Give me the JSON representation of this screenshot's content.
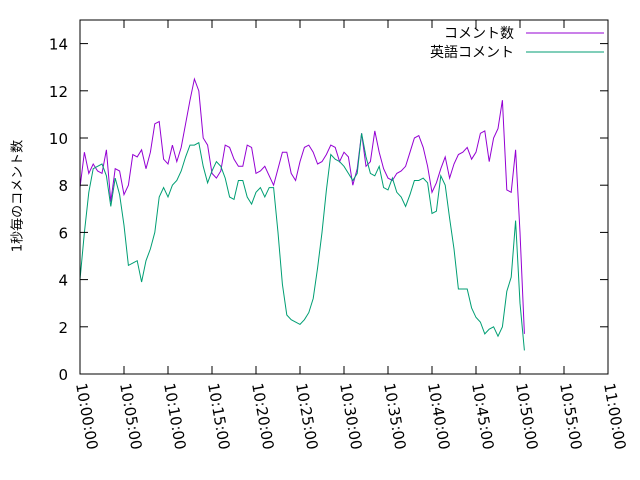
{
  "chart_data": {
    "type": "line",
    "title": "",
    "xlabel": "",
    "ylabel": "1秒毎のコメント数",
    "ylim": [
      0,
      15
    ],
    "yticks": [
      0,
      2,
      4,
      6,
      8,
      10,
      12,
      14
    ],
    "xticks": [
      "10:00:00",
      "10:05:00",
      "10:10:00",
      "10:15:00",
      "10:20:00",
      "10:25:00",
      "10:30:00",
      "10:35:00",
      "10:40:00",
      "10:45:00",
      "10:50:00",
      "10:55:00",
      "11:00:00"
    ],
    "xlim_minutes": [
      0,
      60
    ],
    "grid": false,
    "legend_position": "top-right",
    "series": [
      {
        "name": "コメント数",
        "color": "#9400d3",
        "points": [
          [
            0.0,
            7.9
          ],
          [
            0.5,
            9.4
          ],
          [
            1.0,
            8.5
          ],
          [
            1.5,
            8.9
          ],
          [
            2.0,
            8.6
          ],
          [
            2.5,
            8.5
          ],
          [
            3.0,
            9.5
          ],
          [
            3.5,
            7.3
          ],
          [
            4.0,
            8.7
          ],
          [
            4.5,
            8.6
          ],
          [
            5.0,
            7.6
          ],
          [
            5.5,
            8.0
          ],
          [
            6.0,
            9.3
          ],
          [
            6.5,
            9.2
          ],
          [
            7.0,
            9.5
          ],
          [
            7.5,
            8.7
          ],
          [
            8.0,
            9.4
          ],
          [
            8.5,
            10.6
          ],
          [
            9.0,
            10.7
          ],
          [
            9.5,
            9.1
          ],
          [
            10.0,
            8.9
          ],
          [
            10.5,
            9.7
          ],
          [
            11.0,
            9.0
          ],
          [
            11.5,
            9.6
          ],
          [
            12.0,
            10.6
          ],
          [
            12.5,
            11.6
          ],
          [
            13.0,
            12.5
          ],
          [
            13.5,
            12.0
          ],
          [
            14.0,
            10.0
          ],
          [
            14.5,
            9.7
          ],
          [
            15.0,
            8.5
          ],
          [
            15.5,
            8.3
          ],
          [
            16.0,
            8.6
          ],
          [
            16.5,
            9.7
          ],
          [
            17.0,
            9.6
          ],
          [
            17.5,
            9.1
          ],
          [
            18.0,
            8.8
          ],
          [
            18.5,
            8.8
          ],
          [
            19.0,
            9.7
          ],
          [
            19.5,
            9.6
          ],
          [
            20.0,
            8.5
          ],
          [
            20.5,
            8.6
          ],
          [
            21.0,
            8.8
          ],
          [
            21.5,
            8.4
          ],
          [
            22.0,
            8.0
          ],
          [
            22.5,
            8.7
          ],
          [
            23.0,
            9.4
          ],
          [
            23.5,
            9.4
          ],
          [
            24.0,
            8.5
          ],
          [
            24.5,
            8.2
          ],
          [
            25.0,
            9.0
          ],
          [
            25.5,
            9.6
          ],
          [
            26.0,
            9.7
          ],
          [
            26.5,
            9.4
          ],
          [
            27.0,
            8.9
          ],
          [
            27.5,
            9.0
          ],
          [
            28.0,
            9.3
          ],
          [
            28.5,
            9.7
          ],
          [
            29.0,
            9.6
          ],
          [
            29.5,
            9.0
          ],
          [
            30.0,
            9.4
          ],
          [
            30.5,
            9.2
          ],
          [
            31.0,
            8.0
          ],
          [
            31.5,
            8.7
          ],
          [
            32.0,
            10.2
          ],
          [
            32.5,
            8.8
          ],
          [
            33.0,
            9.0
          ],
          [
            33.5,
            10.3
          ],
          [
            34.0,
            9.4
          ],
          [
            34.5,
            8.7
          ],
          [
            35.0,
            8.3
          ],
          [
            35.5,
            8.2
          ],
          [
            36.0,
            8.5
          ],
          [
            36.5,
            8.6
          ],
          [
            37.0,
            8.8
          ],
          [
            37.5,
            9.4
          ],
          [
            38.0,
            10.0
          ],
          [
            38.5,
            10.1
          ],
          [
            39.0,
            9.6
          ],
          [
            39.5,
            8.8
          ],
          [
            40.0,
            7.7
          ],
          [
            40.5,
            8.1
          ],
          [
            41.0,
            8.7
          ],
          [
            41.5,
            9.2
          ],
          [
            42.0,
            8.3
          ],
          [
            42.5,
            8.9
          ],
          [
            43.0,
            9.3
          ],
          [
            43.5,
            9.4
          ],
          [
            44.0,
            9.6
          ],
          [
            44.5,
            9.1
          ],
          [
            45.0,
            9.4
          ],
          [
            45.5,
            10.2
          ],
          [
            46.0,
            10.3
          ],
          [
            46.5,
            9.0
          ],
          [
            47.0,
            10.0
          ],
          [
            47.5,
            10.4
          ],
          [
            48.0,
            11.6
          ],
          [
            48.5,
            7.8
          ],
          [
            49.0,
            7.7
          ],
          [
            49.5,
            9.5
          ],
          [
            50.0,
            6.0
          ],
          [
            50.5,
            1.7
          ]
        ]
      },
      {
        "name": "英語コメント",
        "color": "#009e73",
        "points": [
          [
            0.0,
            4.0
          ],
          [
            0.5,
            6.0
          ],
          [
            1.0,
            7.7
          ],
          [
            1.5,
            8.7
          ],
          [
            2.0,
            8.8
          ],
          [
            2.5,
            8.9
          ],
          [
            3.0,
            8.4
          ],
          [
            3.5,
            7.1
          ],
          [
            4.0,
            8.3
          ],
          [
            4.5,
            7.6
          ],
          [
            5.0,
            6.3
          ],
          [
            5.5,
            4.6
          ],
          [
            6.0,
            4.7
          ],
          [
            6.5,
            4.8
          ],
          [
            7.0,
            3.9
          ],
          [
            7.5,
            4.8
          ],
          [
            8.0,
            5.3
          ],
          [
            8.5,
            6.0
          ],
          [
            9.0,
            7.5
          ],
          [
            9.5,
            7.9
          ],
          [
            10.0,
            7.5
          ],
          [
            10.5,
            8.0
          ],
          [
            11.0,
            8.2
          ],
          [
            11.5,
            8.6
          ],
          [
            12.0,
            9.2
          ],
          [
            12.5,
            9.7
          ],
          [
            13.0,
            9.7
          ],
          [
            13.5,
            9.8
          ],
          [
            14.0,
            8.8
          ],
          [
            14.5,
            8.1
          ],
          [
            15.0,
            8.6
          ],
          [
            15.5,
            9.0
          ],
          [
            16.0,
            8.8
          ],
          [
            16.5,
            8.3
          ],
          [
            17.0,
            7.5
          ],
          [
            17.5,
            7.4
          ],
          [
            18.0,
            8.2
          ],
          [
            18.5,
            8.2
          ],
          [
            19.0,
            7.5
          ],
          [
            19.5,
            7.2
          ],
          [
            20.0,
            7.7
          ],
          [
            20.5,
            7.9
          ],
          [
            21.0,
            7.5
          ],
          [
            21.5,
            7.9
          ],
          [
            22.0,
            7.9
          ],
          [
            22.5,
            6.0
          ],
          [
            23.0,
            3.8
          ],
          [
            23.5,
            2.5
          ],
          [
            24.0,
            2.3
          ],
          [
            24.5,
            2.2
          ],
          [
            25.0,
            2.1
          ],
          [
            25.5,
            2.3
          ],
          [
            26.0,
            2.6
          ],
          [
            26.5,
            3.2
          ],
          [
            27.0,
            4.5
          ],
          [
            27.5,
            6.0
          ],
          [
            28.0,
            7.8
          ],
          [
            28.5,
            9.3
          ],
          [
            29.0,
            9.1
          ],
          [
            29.5,
            9.0
          ],
          [
            30.0,
            8.8
          ],
          [
            30.5,
            8.5
          ],
          [
            31.0,
            8.2
          ],
          [
            31.5,
            8.5
          ],
          [
            32.0,
            10.2
          ],
          [
            32.5,
            9.2
          ],
          [
            33.0,
            8.5
          ],
          [
            33.5,
            8.4
          ],
          [
            34.0,
            8.8
          ],
          [
            34.5,
            7.9
          ],
          [
            35.0,
            7.8
          ],
          [
            35.5,
            8.3
          ],
          [
            36.0,
            7.7
          ],
          [
            36.5,
            7.5
          ],
          [
            37.0,
            7.1
          ],
          [
            37.5,
            7.6
          ],
          [
            38.0,
            8.2
          ],
          [
            38.5,
            8.2
          ],
          [
            39.0,
            8.3
          ],
          [
            39.5,
            8.1
          ],
          [
            40.0,
            6.8
          ],
          [
            40.5,
            6.9
          ],
          [
            41.0,
            8.4
          ],
          [
            41.5,
            8.0
          ],
          [
            42.0,
            6.6
          ],
          [
            42.5,
            5.3
          ],
          [
            43.0,
            3.6
          ],
          [
            43.5,
            3.6
          ],
          [
            44.0,
            3.6
          ],
          [
            44.5,
            2.8
          ],
          [
            45.0,
            2.4
          ],
          [
            45.5,
            2.2
          ],
          [
            46.0,
            1.7
          ],
          [
            46.5,
            1.9
          ],
          [
            47.0,
            2.0
          ],
          [
            47.5,
            1.6
          ],
          [
            48.0,
            2.0
          ],
          [
            48.5,
            3.5
          ],
          [
            49.0,
            4.1
          ],
          [
            49.5,
            6.5
          ],
          [
            50.0,
            3.0
          ],
          [
            50.5,
            1.0
          ]
        ]
      }
    ]
  }
}
